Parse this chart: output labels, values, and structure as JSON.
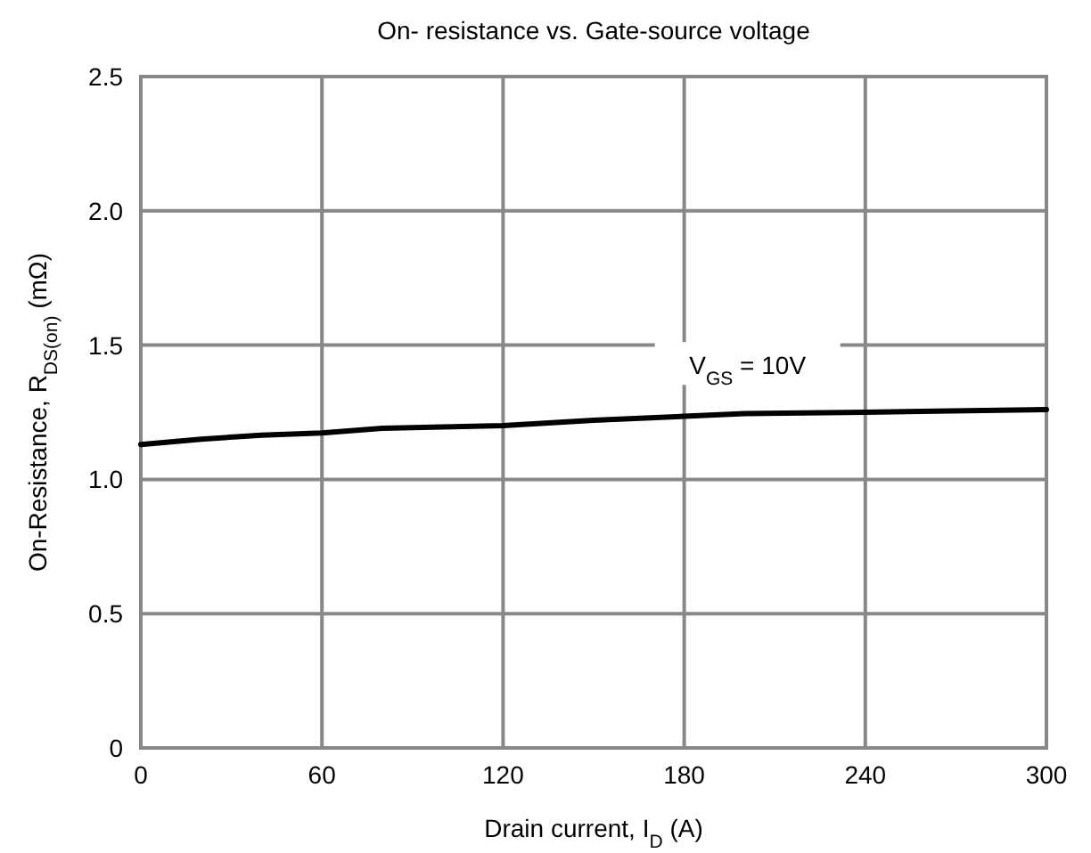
{
  "chart_data": {
    "type": "line",
    "title": "On- resistance vs. Gate-source voltage",
    "xlabel": "Drain current, I$_{D}$ (A)",
    "ylabel": "On-Resistance,  R$_{DS(on)}$ (mΩ)",
    "x": [
      0,
      10,
      20,
      40,
      60,
      80,
      100,
      120,
      150,
      180,
      200,
      240,
      300
    ],
    "series": [
      {
        "color": "#000000",
        "values": [
          1.13,
          1.14,
          1.15,
          1.165,
          1.173,
          1.19,
          1.195,
          1.2,
          1.22,
          1.235,
          1.245,
          1.25,
          1.26
        ]
      }
    ],
    "xlim": [
      0,
      300
    ],
    "xticks": [
      0,
      60,
      120,
      180,
      240,
      300
    ],
    "ylim": [
      0,
      2.5
    ],
    "yticks": [
      0,
      {
        "value": 0.5,
        "label": "0.5"
      },
      {
        "value": 1,
        "label": "1.0"
      },
      {
        "value": 1.5,
        "label": "1.5"
      },
      {
        "value": 2,
        "label": "2.0"
      },
      {
        "value": 2.5,
        "label": "2.5"
      }
    ],
    "grid": true,
    "line_style": "solid",
    "marker": "none",
    "annotations": [
      "V$_{GS}$ = 10V"
    ]
  }
}
